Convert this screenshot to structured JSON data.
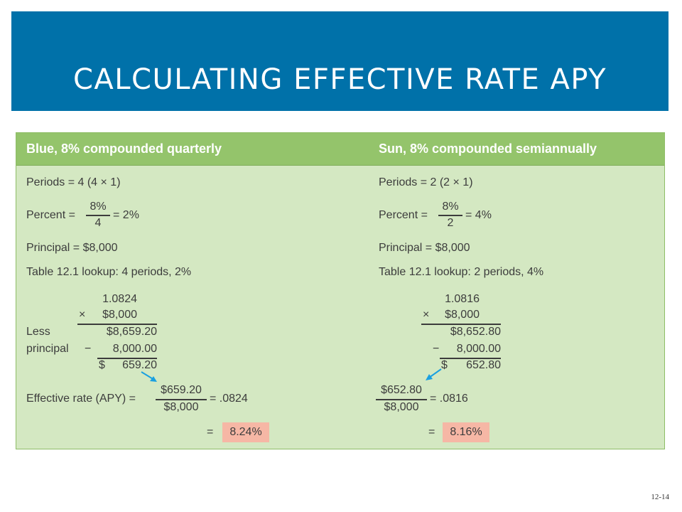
{
  "slide": {
    "title": "CALCULATING EFFECTIVE RATE APY",
    "page_number": "12-14"
  },
  "colors": {
    "header_bg": "#0071a9",
    "panel_bg": "#d4e8c2",
    "panel_header_bg": "#94c46b",
    "highlight": "#f6b7a5",
    "arrow": "#1aa0e0"
  },
  "left": {
    "heading": "Blue, 8% compounded quarterly",
    "periods": "Periods = 4 (4 × 1)",
    "percent_label": "Percent =",
    "percent_num": "8%",
    "percent_den": "4",
    "percent_result": "= 2%",
    "principal": "Principal = $8,000",
    "lookup": "Table 12.1 lookup: 4 periods, 2%",
    "factor": "1.0824",
    "times": "×",
    "multiplier": "$8,000",
    "less_label": "Less",
    "principal_label": "principal",
    "product": "$8,659.20",
    "minus": "−",
    "subtract": "8,000.00",
    "dollar": "$",
    "interest": "659.20",
    "apy_label": "Effective rate (APY) =",
    "apy_num": "$659.20",
    "apy_den": "$8,000",
    "apy_decimal": "= .0824",
    "eq": "=",
    "apy_percent": "8.24%"
  },
  "right": {
    "heading": "Sun, 8% compounded semiannually",
    "periods": "Periods = 2 (2 × 1)",
    "percent_label": "Percent =",
    "percent_num": "8%",
    "percent_den": "2",
    "percent_result": "= 4%",
    "principal": "Principal = $8,000",
    "lookup": "Table 12.1 lookup: 2 periods, 4%",
    "factor": "1.0816",
    "times": "×",
    "multiplier": "$8,000",
    "product": "$8,652.80",
    "minus": "−",
    "subtract": "8,000.00",
    "dollar": "$",
    "interest": "652.80",
    "apy_num": "$652.80",
    "apy_den": "$8,000",
    "apy_decimal": "= .0816",
    "eq": "=",
    "apy_percent": "8.16%"
  }
}
